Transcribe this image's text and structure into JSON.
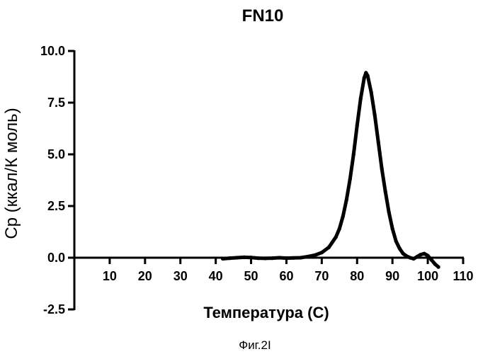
{
  "chart_data": {
    "type": "line",
    "title": "FN10",
    "xlabel": "Температура (С)",
    "ylabel": "Ср (ккал/К моль)",
    "xlim": [
      0,
      110
    ],
    "ylim": [
      -2.5,
      10.0
    ],
    "x_ticks": [
      10,
      20,
      30,
      40,
      50,
      60,
      70,
      80,
      90,
      100,
      110
    ],
    "y_ticks": [
      -2.5,
      0.0,
      2.5,
      5.0,
      7.5,
      10.0
    ],
    "x_tick_labels": [
      "10",
      "20",
      "30",
      "40",
      "50",
      "60",
      "70",
      "80",
      "90",
      "100",
      "110"
    ],
    "y_tick_labels": [
      "-2.5",
      "0.0",
      "2.5",
      "5.0",
      "7.5",
      "10.0"
    ],
    "grid": false,
    "series": [
      {
        "color": "#000000",
        "x": [
          42,
          44,
          46,
          48,
          50,
          52,
          54,
          56,
          58,
          60,
          62,
          64,
          66,
          68,
          70,
          72,
          74,
          75,
          76,
          77,
          78,
          79,
          80,
          81,
          82,
          82.5,
          83,
          84,
          85,
          86,
          87,
          88,
          89,
          90,
          91,
          92,
          93,
          94,
          95,
          96,
          97,
          98,
          99,
          100,
          101,
          102,
          103
        ],
        "y": [
          -0.05,
          -0.02,
          0.0,
          0.02,
          0.01,
          -0.02,
          -0.03,
          -0.02,
          0.0,
          -0.02,
          -0.01,
          0.0,
          0.05,
          0.12,
          0.25,
          0.5,
          1.0,
          1.4,
          2.0,
          2.8,
          3.8,
          5.0,
          6.4,
          7.7,
          8.7,
          8.95,
          8.8,
          8.0,
          6.9,
          5.6,
          4.3,
          3.2,
          2.2,
          1.4,
          0.8,
          0.45,
          0.2,
          0.08,
          0.0,
          -0.05,
          0.05,
          0.15,
          0.2,
          0.1,
          -0.1,
          -0.3,
          -0.45
        ]
      }
    ]
  },
  "caption": "Фиг.2I"
}
